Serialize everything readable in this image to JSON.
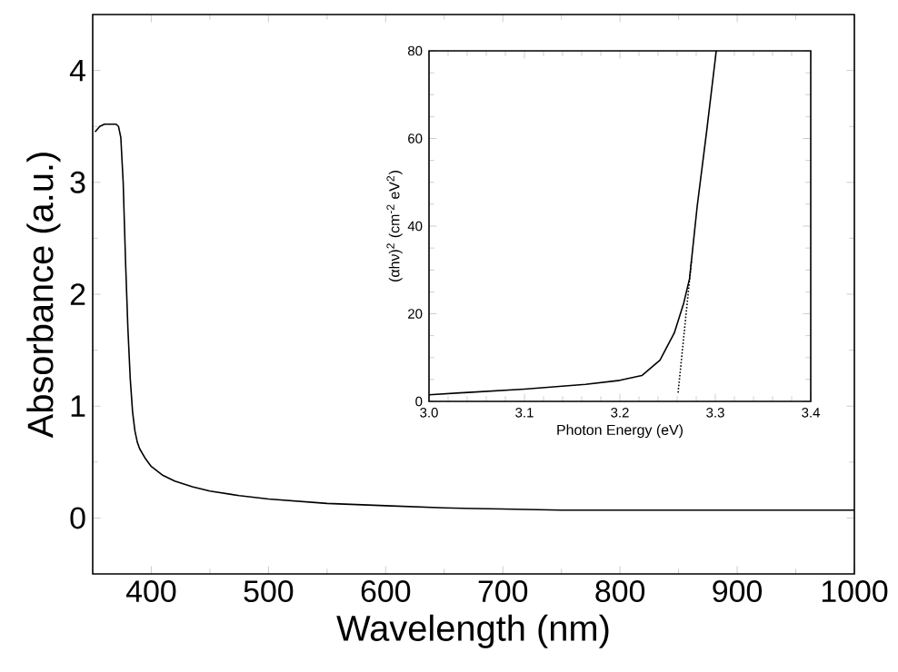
{
  "chart_data": [
    {
      "type": "line",
      "xlabel": "Wavelength (nm)",
      "ylabel": "Absorbance (a.u.)",
      "xlim": [
        350,
        1000
      ],
      "ylim": [
        -0.5,
        4.5
      ],
      "xticks": [
        400,
        500,
        600,
        700,
        800,
        900,
        1000
      ],
      "yticks": [
        0,
        1,
        2,
        3,
        4
      ],
      "series": [
        {
          "color": "#000000",
          "x": [
            352,
            356,
            360,
            365,
            370,
            372,
            374,
            376,
            378,
            380,
            382,
            384,
            386,
            388,
            390,
            395,
            400,
            410,
            420,
            435,
            450,
            475,
            500,
            550,
            600,
            650,
            700,
            750,
            800,
            900,
            1000
          ],
          "values": [
            3.45,
            3.5,
            3.52,
            3.52,
            3.52,
            3.5,
            3.4,
            3.0,
            2.3,
            1.7,
            1.25,
            0.95,
            0.78,
            0.68,
            0.62,
            0.53,
            0.46,
            0.38,
            0.33,
            0.28,
            0.24,
            0.2,
            0.17,
            0.13,
            0.11,
            0.09,
            0.08,
            0.07,
            0.07,
            0.07,
            0.07
          ]
        }
      ]
    },
    {
      "type": "line",
      "xlabel": "Photon Energy (eV)",
      "ylabel": "(αhν)$^{2}$ (cm$^{-2}$ eV$^{2}$)",
      "xlim": [
        3.0,
        3.4
      ],
      "ylim": [
        0,
        80
      ],
      "xticks": [
        {
          "value": 3.0,
          "label": "3.0"
        },
        3.1,
        3.2,
        3.3,
        3.4
      ],
      "yticks": [
        0,
        20,
        40,
        60,
        80
      ],
      "series": [
        {
          "color": "#000000",
          "x": [
            3.0,
            3.037,
            3.1,
            3.164,
            3.2,
            3.223,
            3.242,
            3.257,
            3.267,
            3.273,
            3.281,
            3.291,
            3.301
          ],
          "values": [
            1.5,
            2,
            2.8,
            3.9,
            4.8,
            5.9,
            9.4,
            15.6,
            22.5,
            28,
            44.5,
            61.8,
            80
          ]
        },
        {
          "color": "#000000",
          "line_style": "dotted",
          "x": [
            3.261,
            3.275
          ],
          "values": [
            2,
            32
          ]
        }
      ]
    }
  ]
}
